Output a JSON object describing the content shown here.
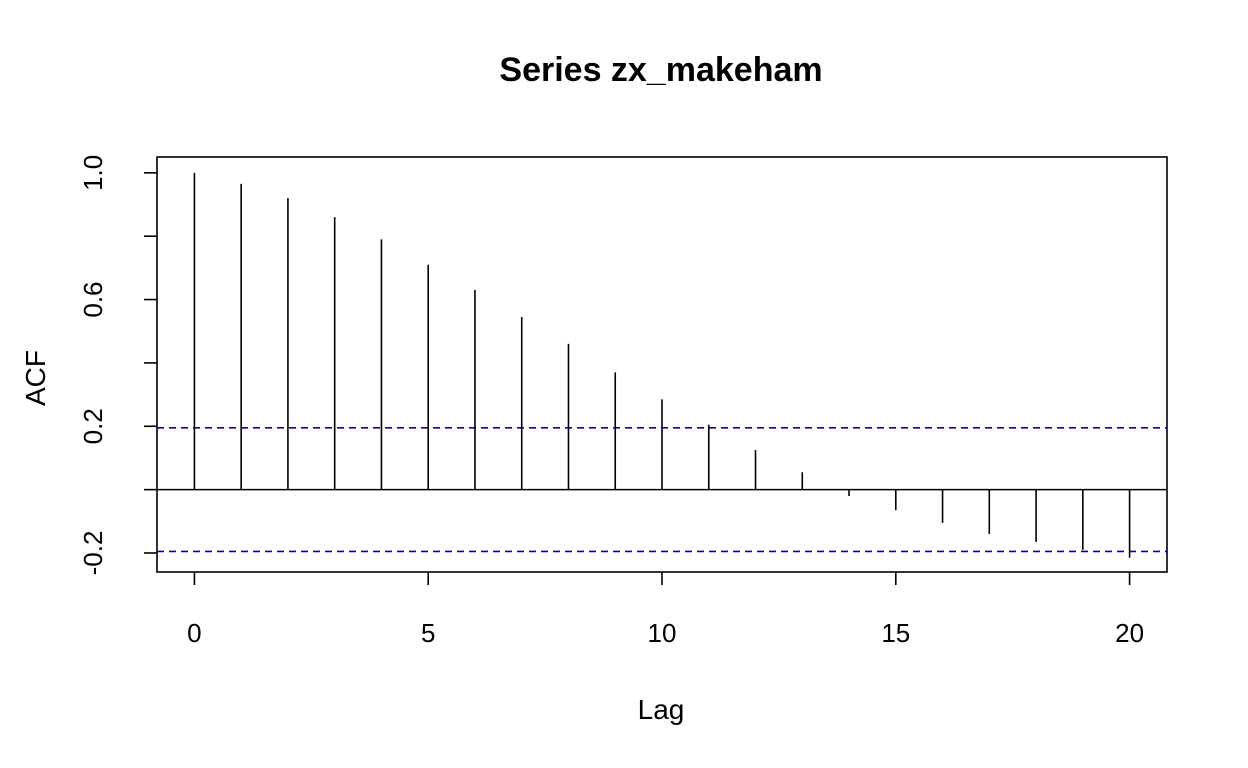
{
  "chart_data": {
    "type": "bar",
    "title": "Series  zx_makeham",
    "xlabel": "Lag",
    "ylabel": "ACF",
    "xlim": [
      -0.8,
      20.8
    ],
    "ylim": [
      -0.26,
      1.05
    ],
    "x_ticks": [
      0,
      5,
      10,
      15,
      20
    ],
    "x_tick_labels": [
      "0",
      "5",
      "10",
      "15",
      "20"
    ],
    "y_ticks": [
      -0.2,
      0.2,
      0.6,
      1.0
    ],
    "y_tick_labels": [
      "-0.2",
      "0.2",
      "0.6",
      "1.0"
    ],
    "y_minor_ticks": [
      0.0,
      0.4,
      0.8
    ],
    "lags": [
      0,
      1,
      2,
      3,
      4,
      5,
      6,
      7,
      8,
      9,
      10,
      11,
      12,
      13,
      14,
      15,
      16,
      17,
      18,
      19,
      20
    ],
    "acf": [
      1.0,
      0.965,
      0.92,
      0.86,
      0.79,
      0.71,
      0.63,
      0.545,
      0.46,
      0.37,
      0.285,
      0.205,
      0.125,
      0.055,
      -0.02,
      -0.065,
      -0.105,
      -0.14,
      -0.165,
      -0.19,
      -0.215
    ],
    "ci_upper": 0.195,
    "ci_lower": -0.195,
    "ci_color": "#0000cc",
    "grid": false
  }
}
